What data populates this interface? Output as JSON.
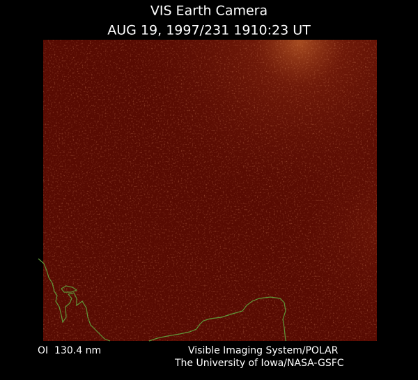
{
  "header": {
    "title": "VIS Earth Camera",
    "subtitle": "AUG 19, 1997/231 1910:23 UT"
  },
  "footer": {
    "wavelength": "OI  130.4 nm",
    "credit_line1": "Visible Imaging System/POLAR",
    "credit_line2": "The University of Iowa/NASA-GSFC"
  }
}
